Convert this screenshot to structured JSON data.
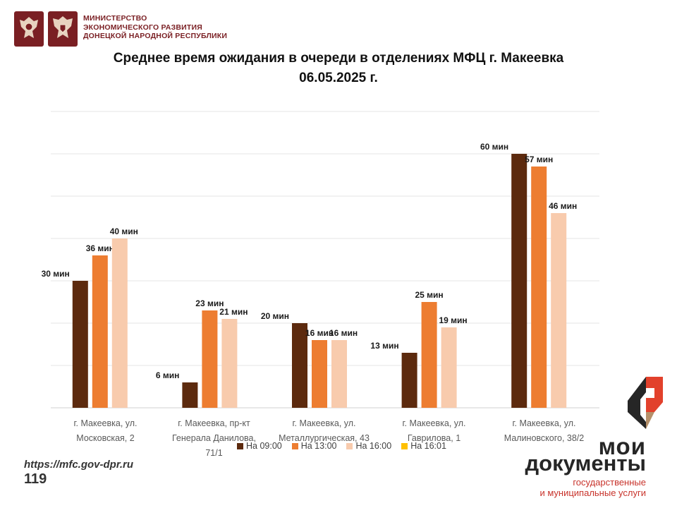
{
  "header": {
    "ministry_lines": [
      "МИНИСТЕРСТВО",
      "ЭКОНОМИЧЕСКОГО РАЗВИТИЯ",
      "ДОНЕЦКОЙ НАРОДНОЙ РЕСПУБЛИКИ"
    ],
    "emblems": [
      "russia-coat-of-arms-icon",
      "dpr-coat-of-arms-icon"
    ]
  },
  "chart_data": {
    "type": "bar",
    "title_line1": "Среднее время ожидания в очереди в отделениях МФЦ г. Макеевка",
    "title_line2": "06.05.2025 г.",
    "categories": [
      [
        "г. Макеевка, ул.",
        "Московская, 2"
      ],
      [
        "г. Макеевка, пр-кт",
        "Генерала Данилова,",
        "71/1"
      ],
      [
        "г. Макеевка, ул.",
        "Металлургическая, 43"
      ],
      [
        "г. Макеевка, ул.",
        "Гаврилова, 1"
      ],
      [
        "г. Макеевка, ул.",
        "Малиновского, 38/2"
      ]
    ],
    "series": [
      {
        "name": "На 09:00",
        "color": "#5c2a0e",
        "values": [
          30,
          6,
          20,
          13,
          60
        ],
        "labels": [
          "30 мин",
          "6 мин",
          "20 мин",
          "13 мин",
          "60 мин"
        ]
      },
      {
        "name": "На 13:00",
        "color": "#ed7d31",
        "values": [
          36,
          23,
          16,
          25,
          57
        ],
        "labels": [
          "36 мин",
          "23 мин",
          "16 мин",
          "25 мин",
          "57 мин"
        ]
      },
      {
        "name": "На 16:00",
        "color": "#f8cbad",
        "values": [
          40,
          21,
          16,
          19,
          46
        ],
        "labels": [
          "40 мин",
          "21 мин",
          "16 мин",
          "19 мин",
          "46 мин"
        ]
      },
      {
        "name": "На 16:01",
        "color": "#ffc000",
        "values": [
          null,
          null,
          null,
          null,
          null
        ],
        "labels": [
          "",
          "",
          "",
          "",
          ""
        ]
      }
    ],
    "ylim": [
      0,
      70
    ],
    "grid": true,
    "legend": "bottom"
  },
  "footer": {
    "site": "https://mfc.gov-dpr.ru",
    "page": "119"
  },
  "brand": {
    "line1": "мои",
    "line2": "документы",
    "sub1": "государственные",
    "sub2": "и муниципальные услуги",
    "accent": "#e2412c"
  }
}
